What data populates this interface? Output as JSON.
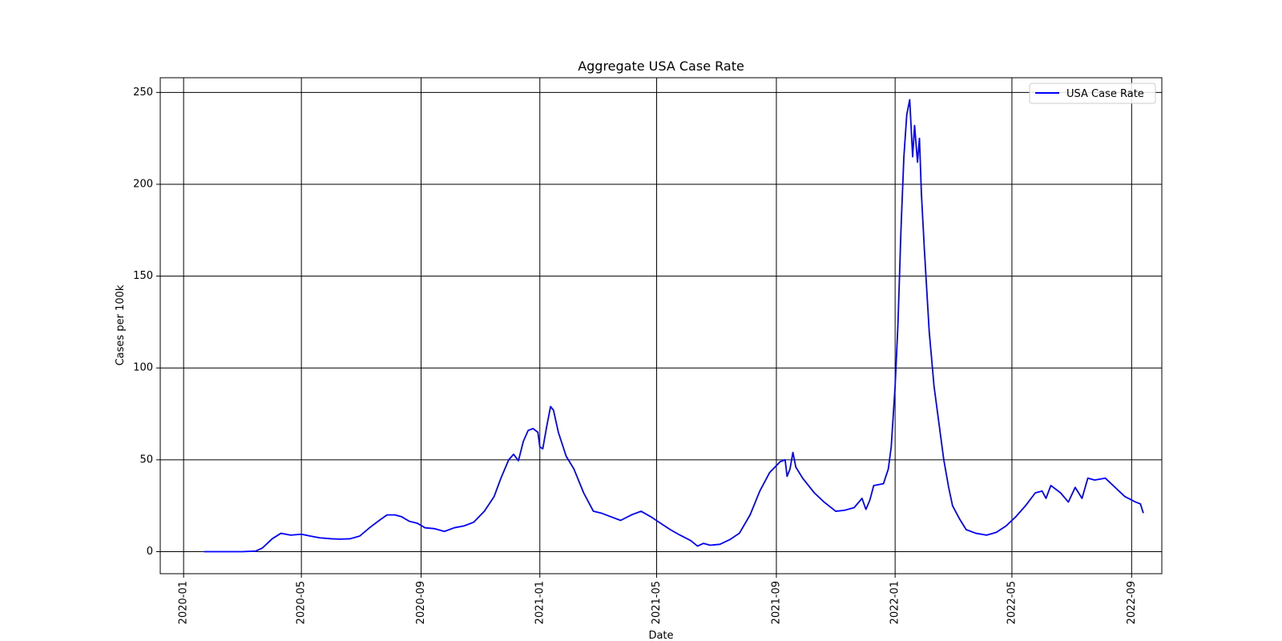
{
  "chart_data": {
    "type": "line",
    "title": "Aggregate USA Case Rate",
    "xlabel": "Date",
    "ylabel": "Cases per 100k",
    "grid": true,
    "legend_position": "top-right",
    "xlim": [
      "2019-12-08",
      "2022-10-02"
    ],
    "ylim": [
      -12,
      258
    ],
    "x_ticks": [
      "2020-01",
      "2020-05",
      "2020-09",
      "2021-01",
      "2021-05",
      "2021-09",
      "2022-01",
      "2022-05",
      "2022-09"
    ],
    "y_ticks": [
      0,
      50,
      100,
      150,
      200,
      250
    ],
    "colors": {
      "series": "#0000ff",
      "grid": "#000000"
    },
    "series": [
      {
        "name": "USA Case Rate",
        "color": "#0000ff",
        "points": [
          [
            "2020-01-22",
            0
          ],
          [
            "2020-02-15",
            0
          ],
          [
            "2020-03-01",
            0
          ],
          [
            "2020-03-15",
            0.3
          ],
          [
            "2020-03-22",
            2
          ],
          [
            "2020-04-01",
            7
          ],
          [
            "2020-04-10",
            10
          ],
          [
            "2020-04-20",
            9
          ],
          [
            "2020-05-01",
            9.5
          ],
          [
            "2020-05-10",
            8.5
          ],
          [
            "2020-05-20",
            7.5
          ],
          [
            "2020-06-01",
            7
          ],
          [
            "2020-06-10",
            6.8
          ],
          [
            "2020-06-20",
            7
          ],
          [
            "2020-06-30",
            8.5
          ],
          [
            "2020-07-10",
            13
          ],
          [
            "2020-07-20",
            17
          ],
          [
            "2020-07-28",
            20
          ],
          [
            "2020-08-05",
            20
          ],
          [
            "2020-08-12",
            19
          ],
          [
            "2020-08-20",
            16.5
          ],
          [
            "2020-08-28",
            15.5
          ],
          [
            "2020-09-05",
            13
          ],
          [
            "2020-09-15",
            12.5
          ],
          [
            "2020-09-25",
            11
          ],
          [
            "2020-10-05",
            13
          ],
          [
            "2020-10-15",
            14
          ],
          [
            "2020-10-25",
            16
          ],
          [
            "2020-11-05",
            22
          ],
          [
            "2020-11-15",
            30
          ],
          [
            "2020-11-22",
            40
          ],
          [
            "2020-11-30",
            50
          ],
          [
            "2020-12-05",
            53
          ],
          [
            "2020-12-10",
            49.5
          ],
          [
            "2020-12-15",
            60
          ],
          [
            "2020-12-20",
            66
          ],
          [
            "2020-12-25",
            67
          ],
          [
            "2020-12-30",
            65
          ],
          [
            "2021-01-01",
            57
          ],
          [
            "2021-01-04",
            56
          ],
          [
            "2021-01-08",
            68
          ],
          [
            "2021-01-12",
            79
          ],
          [
            "2021-01-15",
            77
          ],
          [
            "2021-01-20",
            65
          ],
          [
            "2021-01-28",
            52
          ],
          [
            "2021-02-05",
            45
          ],
          [
            "2021-02-15",
            32
          ],
          [
            "2021-02-25",
            22
          ],
          [
            "2021-03-05",
            21
          ],
          [
            "2021-03-15",
            19
          ],
          [
            "2021-03-25",
            17
          ],
          [
            "2021-04-05",
            20
          ],
          [
            "2021-04-15",
            22
          ],
          [
            "2021-04-25",
            19
          ],
          [
            "2021-05-05",
            15.5
          ],
          [
            "2021-05-15",
            12
          ],
          [
            "2021-05-25",
            9
          ],
          [
            "2021-06-05",
            6
          ],
          [
            "2021-06-12",
            3
          ],
          [
            "2021-06-18",
            4.5
          ],
          [
            "2021-06-25",
            3.5
          ],
          [
            "2021-07-05",
            4
          ],
          [
            "2021-07-15",
            6.5
          ],
          [
            "2021-07-25",
            10
          ],
          [
            "2021-08-05",
            20
          ],
          [
            "2021-08-15",
            33
          ],
          [
            "2021-08-25",
            43
          ],
          [
            "2021-09-05",
            49
          ],
          [
            "2021-09-10",
            50
          ],
          [
            "2021-09-12",
            41
          ],
          [
            "2021-09-15",
            45
          ],
          [
            "2021-09-18",
            54
          ],
          [
            "2021-09-21",
            46
          ],
          [
            "2021-09-28",
            40
          ],
          [
            "2021-10-10",
            32
          ],
          [
            "2021-10-20",
            27
          ],
          [
            "2021-11-01",
            22
          ],
          [
            "2021-11-10",
            22.5
          ],
          [
            "2021-11-20",
            24
          ],
          [
            "2021-11-28",
            29
          ],
          [
            "2021-12-02",
            23
          ],
          [
            "2021-12-06",
            28
          ],
          [
            "2021-12-10",
            36
          ],
          [
            "2021-12-20",
            37
          ],
          [
            "2021-12-25",
            45
          ],
          [
            "2021-12-28",
            57
          ],
          [
            "2022-01-01",
            90
          ],
          [
            "2022-01-04",
            125
          ],
          [
            "2022-01-07",
            175
          ],
          [
            "2022-01-10",
            215
          ],
          [
            "2022-01-13",
            238
          ],
          [
            "2022-01-16",
            246
          ],
          [
            "2022-01-19",
            215
          ],
          [
            "2022-01-21",
            232
          ],
          [
            "2022-01-24",
            212
          ],
          [
            "2022-01-26",
            225
          ],
          [
            "2022-01-28",
            195
          ],
          [
            "2022-01-31",
            165
          ],
          [
            "2022-02-05",
            120
          ],
          [
            "2022-02-10",
            90
          ],
          [
            "2022-02-15",
            70
          ],
          [
            "2022-02-20",
            50
          ],
          [
            "2022-02-25",
            35
          ],
          [
            "2022-03-01",
            25
          ],
          [
            "2022-03-08",
            18
          ],
          [
            "2022-03-15",
            12
          ],
          [
            "2022-03-25",
            10
          ],
          [
            "2022-04-05",
            9
          ],
          [
            "2022-04-15",
            10.5
          ],
          [
            "2022-04-25",
            14
          ],
          [
            "2022-05-05",
            19
          ],
          [
            "2022-05-15",
            25
          ],
          [
            "2022-05-25",
            32
          ],
          [
            "2022-06-01",
            33
          ],
          [
            "2022-06-05",
            29
          ],
          [
            "2022-06-10",
            36
          ],
          [
            "2022-06-20",
            32
          ],
          [
            "2022-06-28",
            27
          ],
          [
            "2022-07-05",
            35
          ],
          [
            "2022-07-12",
            29
          ],
          [
            "2022-07-18",
            40
          ],
          [
            "2022-07-25",
            39
          ],
          [
            "2022-08-05",
            40
          ],
          [
            "2022-08-15",
            35
          ],
          [
            "2022-08-25",
            30
          ],
          [
            "2022-09-05",
            27
          ],
          [
            "2022-09-10",
            26
          ],
          [
            "2022-09-13",
            21
          ]
        ]
      }
    ]
  }
}
